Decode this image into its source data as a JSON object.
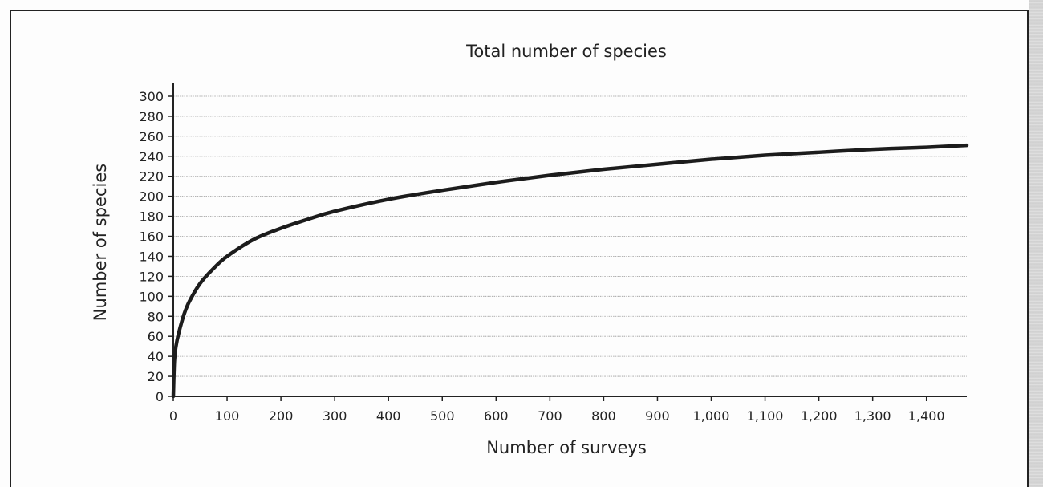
{
  "chart_data": {
    "type": "line",
    "title": "Total number of species",
    "xlabel": "Number of surveys",
    "ylabel": "Number of species",
    "xlim": [
      0,
      1475
    ],
    "ylim": [
      0,
      300
    ],
    "x_ticks": [
      0,
      100,
      200,
      300,
      400,
      500,
      600,
      700,
      800,
      900,
      1000,
      1100,
      1200,
      1300,
      1400
    ],
    "x_tick_labels": [
      "0",
      "100",
      "200",
      "300",
      "400",
      "500",
      "600",
      "700",
      "800",
      "900",
      "1,000",
      "1,100",
      "1,200",
      "1,300",
      "1,400"
    ],
    "y_ticks": [
      0,
      20,
      40,
      60,
      80,
      100,
      120,
      140,
      160,
      180,
      200,
      220,
      240,
      260,
      280,
      300
    ],
    "y_tick_labels": [
      "0",
      "20",
      "40",
      "60",
      "80",
      "100",
      "120",
      "140",
      "160",
      "180",
      "200",
      "220",
      "240",
      "260",
      "280",
      "300"
    ],
    "grid": true,
    "series": [
      {
        "color": "#1c1c1c",
        "x": [
          0,
          2,
          5,
          10,
          20,
          30,
          50,
          75,
          100,
          150,
          200,
          250,
          300,
          400,
          500,
          600,
          700,
          800,
          900,
          1000,
          1100,
          1200,
          1300,
          1400,
          1475
        ],
        "y": [
          0,
          35,
          50,
          63,
          82,
          95,
          113,
          128,
          140,
          157,
          168,
          177,
          185,
          197,
          206,
          214,
          221,
          227,
          232,
          237,
          241,
          244,
          247,
          249,
          251
        ]
      }
    ]
  }
}
